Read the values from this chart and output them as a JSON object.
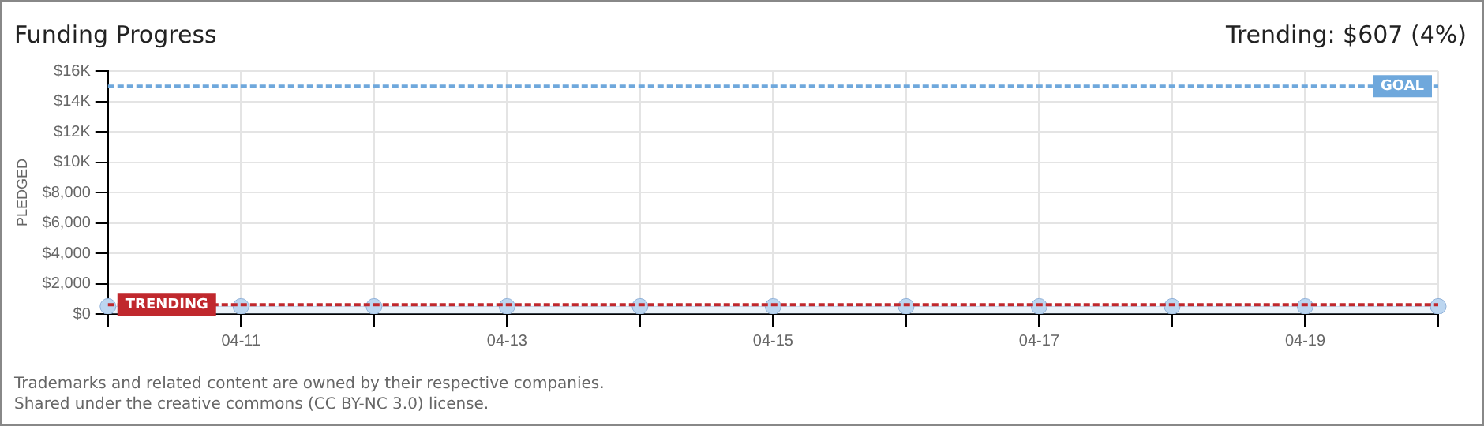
{
  "chart_data": {
    "type": "area",
    "title": "Funding Progress",
    "subtitle": "Trending: $607 (4%)",
    "ylabel": "PLEDGED",
    "categories": [
      null,
      "04-11",
      null,
      "04-13",
      null,
      "04-15",
      null,
      "04-17",
      null,
      "04-19",
      null
    ],
    "series": [
      {
        "color": "#bcd6f0",
        "values": [
          500,
          500,
          500,
          500,
          500,
          500,
          500,
          500,
          500,
          500,
          500
        ]
      }
    ],
    "ylim": [
      0,
      16000
    ],
    "yticks": [
      {
        "value": 0,
        "label": "$0"
      },
      {
        "value": 2000,
        "label": "$2,000"
      },
      {
        "value": 4000,
        "label": "$4,000"
      },
      {
        "value": 6000,
        "label": "$6,000"
      },
      {
        "value": 8000,
        "label": "$8,000"
      },
      {
        "value": 10000,
        "label": "$10K"
      },
      {
        "value": 12000,
        "label": "$12K"
      },
      {
        "value": 14000,
        "label": "$14K"
      },
      {
        "value": 16000,
        "label": "$16K"
      }
    ],
    "ref_lines": [
      {
        "axis": "y",
        "value": 15000,
        "label": "GOAL",
        "color": "#6fa8dc",
        "line_style": "dashed"
      },
      {
        "axis": "y",
        "value": 607,
        "label": "TRENDING",
        "color": "#c0282d",
        "line_style": "dashed"
      }
    ],
    "grid": true,
    "legend": false,
    "marker": "circle",
    "annotations": [
      "Trademarks and related content are owned by their respective companies.",
      "Shared under the creative commons (CC BY-NC 3.0) license."
    ]
  }
}
